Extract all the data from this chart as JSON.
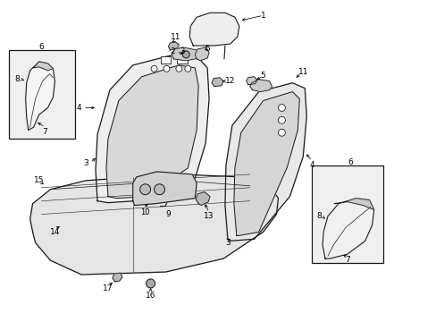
{
  "bg_color": "#ffffff",
  "line_color": "#1a1a1a",
  "fill_white": "#ffffff",
  "fill_light": "#f0f0f0",
  "fill_seat": "#e8e8e8",
  "fill_inner": "#d8d8d8",
  "fig_width": 4.89,
  "fig_height": 3.6,
  "dpi": 100
}
